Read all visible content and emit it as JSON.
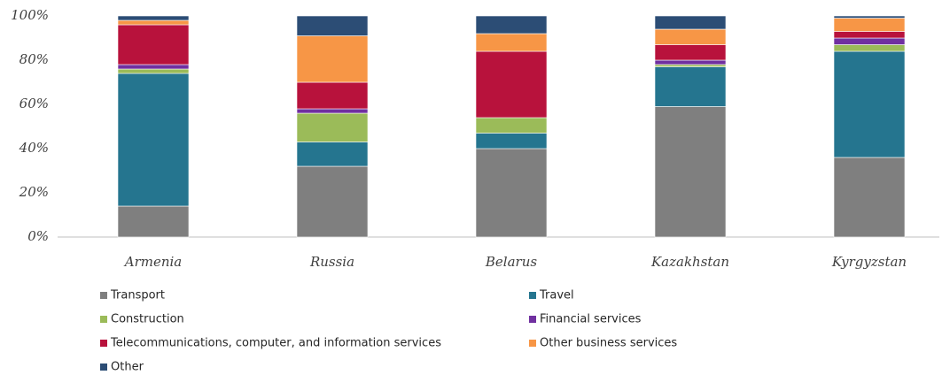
{
  "chart_data": {
    "type": "stacked_bar",
    "categories": [
      "Armenia",
      "Russia",
      "Belarus",
      "Kazakhstan",
      "Kyrgyzstan"
    ],
    "series": [
      {
        "name": "Transport",
        "color": "#7f7f7f",
        "values": [
          14,
          32,
          40,
          59,
          36
        ]
      },
      {
        "name": "Travel",
        "color": "#25758f",
        "values": [
          60,
          11,
          7,
          18,
          48
        ]
      },
      {
        "name": "Construction",
        "color": "#9bbb59",
        "values": [
          2,
          13,
          7,
          1,
          3
        ]
      },
      {
        "name": "Financial services",
        "color": "#7030a0",
        "values": [
          2,
          2,
          0,
          2,
          3
        ]
      },
      {
        "name": "Telecommunications, computer, and information services",
        "color": "#b8123c",
        "values": [
          18,
          12,
          30,
          7,
          3
        ]
      },
      {
        "name": "Other business services",
        "color": "#f79646",
        "values": [
          2,
          21,
          8,
          7,
          6
        ]
      },
      {
        "name": "Other",
        "color": "#2c4d75",
        "values": [
          2,
          9,
          8,
          6,
          1
        ]
      }
    ],
    "ylim": [
      0,
      100
    ],
    "yticks": [
      {
        "value": 0,
        "label": "0%"
      },
      {
        "value": 20,
        "label": "20%"
      },
      {
        "value": 40,
        "label": "40%"
      },
      {
        "value": 60,
        "label": "60%"
      },
      {
        "value": 80,
        "label": "80%"
      },
      {
        "value": 100,
        "label": "100%"
      }
    ],
    "grid": false,
    "legend": "bottom"
  }
}
